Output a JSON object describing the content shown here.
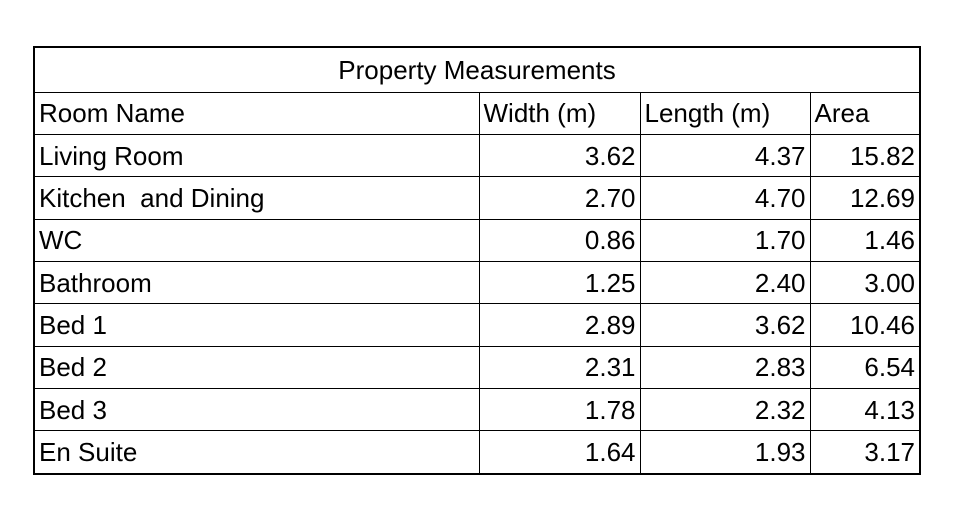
{
  "table": {
    "title": "Property Measurements",
    "headers": [
      "Room Name",
      "Width (m)",
      "Length (m)",
      "Area"
    ],
    "rows": [
      [
        "Living Room",
        "3.62",
        "4.37",
        "15.82"
      ],
      [
        "Kitchen  and Dining",
        "2.70",
        "4.70",
        "12.69"
      ],
      [
        "WC",
        "0.86",
        "1.70",
        "1.46"
      ],
      [
        "Bathroom",
        "1.25",
        "2.40",
        "3.00"
      ],
      [
        "Bed 1",
        "2.89",
        "3.62",
        "10.46"
      ],
      [
        "Bed 2",
        "2.31",
        "2.83",
        "6.54"
      ],
      [
        "Bed 3",
        "1.78",
        "2.32",
        "4.13"
      ],
      [
        "En Suite",
        "1.64",
        "1.93",
        "3.17"
      ]
    ]
  }
}
